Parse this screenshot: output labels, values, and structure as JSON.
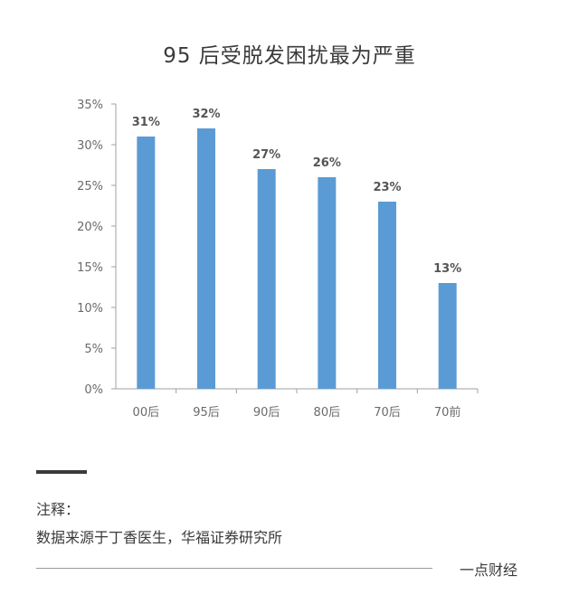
{
  "chart_data": {
    "type": "bar",
    "title": "95 后受脱发困扰最为严重",
    "categories": [
      "00后",
      "95后",
      "90后",
      "80后",
      "70后",
      "70前"
    ],
    "values": [
      31,
      32,
      27,
      26,
      23,
      13
    ],
    "data_labels": [
      "31%",
      "32%",
      "27%",
      "26%",
      "23%",
      "13%"
    ],
    "y_ticks": [
      "0%",
      "5%",
      "10%",
      "15%",
      "20%",
      "25%",
      "30%",
      "35%"
    ],
    "ylim": [
      0,
      35
    ],
    "grid": false,
    "bar_color": "#5b9bd5"
  },
  "notes": {
    "heading": "注释：",
    "source": "数据来源于丁香医生，华福证券研究所"
  },
  "brand": "一点财经"
}
